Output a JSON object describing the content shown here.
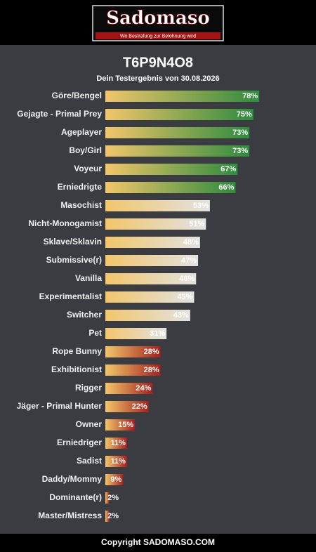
{
  "header": {
    "logo": "Sadomaso",
    "slogan": "Wo Bestrafung zur Belohnung wird"
  },
  "chart_data": {
    "type": "bar",
    "orientation": "horizontal",
    "title": "T6P9N4O8",
    "subtitle": "Dein Testergebnis von 30.08.2026",
    "categories": [
      "Göre/Bengel",
      "Gejagte - Primal Prey",
      "Ageplayer",
      "Boy/Girl",
      "Voyeur",
      "Erniedrigte",
      "Masochist",
      "Nicht-Monogamist",
      "Sklave/Sklavin",
      "Submissive(r)",
      "Vanilla",
      "Experimentalist",
      "Switcher",
      "Pet",
      "Rope Bunny",
      "Exhibitionist",
      "Rigger",
      "Jäger - Primal Hunter",
      "Owner",
      "Erniedriger",
      "Sadist",
      "Daddy/Mommy",
      "Dominante(r)",
      "Master/Mistress"
    ],
    "values": [
      78,
      75,
      73,
      73,
      67,
      66,
      53,
      51,
      48,
      47,
      46,
      45,
      43,
      31,
      28,
      28,
      24,
      22,
      15,
      11,
      11,
      9,
      2,
      2
    ],
    "value_labels": [
      "78%",
      "75%",
      "73%",
      "73%",
      "67%",
      "66%",
      "53%",
      "51%",
      "48%",
      "47%",
      "46%",
      "45%",
      "43%",
      "31%",
      "28%",
      "28%",
      "24%",
      "22%",
      "15%",
      "11%",
      "11%",
      "9%",
      "2%",
      "2%"
    ],
    "colors": [
      "#2e8b3e",
      "#2e8b3e",
      "#2e8b3e",
      "#2e8b3e",
      "#2e8b3e",
      "#2e8b3e",
      "#e2e2e2",
      "#e2e2e2",
      "#e2e2e2",
      "#e2e2e2",
      "#e2e2e2",
      "#e2e2e2",
      "#e2e2e2",
      "#e2e2e2",
      "#a3201e",
      "#a3201e",
      "#a3201e",
      "#a3201e",
      "#a3201e",
      "#a3201e",
      "#a3201e",
      "#a3201e",
      "#a3201e",
      "#a3201e"
    ],
    "gradient_start": "#f2c66a",
    "xlim": [
      0,
      100
    ]
  },
  "footer": {
    "text": "Copyright SADOMASO.COM"
  }
}
